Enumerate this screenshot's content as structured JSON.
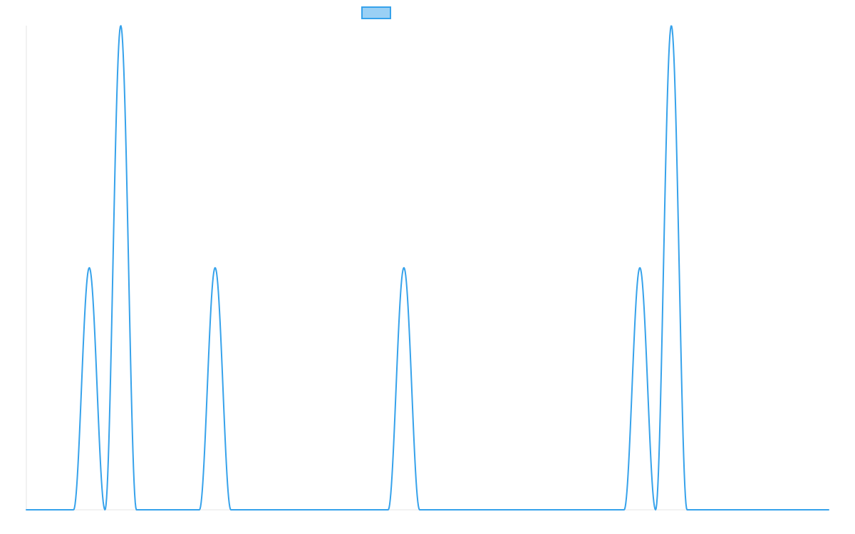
{
  "chart_data": {
    "type": "line",
    "title": "",
    "xlabel": "",
    "ylabel": "",
    "xlim": [
      0,
      255
    ],
    "ylim": [
      0,
      1
    ],
    "grid": false,
    "legend": {
      "placement": "top-center",
      "entries": [
        {
          "name": "",
          "color": "#36a2eb",
          "fill": "#9ad0f5"
        }
      ]
    },
    "series": [
      {
        "name": "",
        "color": "#36a2eb",
        "peaks": [
          {
            "center": 20,
            "height": 0.5,
            "halfwidth": 5
          },
          {
            "center": 30,
            "height": 1.0,
            "halfwidth": 5
          },
          {
            "center": 60,
            "height": 0.5,
            "halfwidth": 5
          },
          {
            "center": 120,
            "height": 0.5,
            "halfwidth": 5
          },
          {
            "center": 195,
            "height": 0.5,
            "halfwidth": 5
          },
          {
            "center": 205,
            "height": 1.0,
            "halfwidth": 5
          }
        ],
        "baseline": 0
      }
    ]
  }
}
